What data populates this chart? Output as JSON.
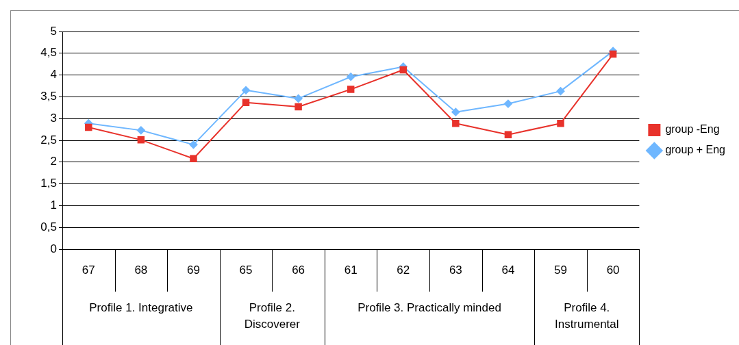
{
  "chart_data": {
    "type": "line",
    "categories": [
      "67",
      "68",
      "69",
      "65",
      "66",
      "61",
      "62",
      "63",
      "64",
      "59",
      "60"
    ],
    "series": [
      {
        "name": "group + Eng",
        "color": "#6fb7ff",
        "marker": "diamond",
        "values": [
          2.89,
          2.73,
          2.4,
          3.65,
          3.46,
          3.96,
          4.19,
          3.15,
          3.34,
          3.63,
          4.55
        ]
      },
      {
        "name": "group -Eng",
        "color": "#e8322b",
        "marker": "square",
        "values": [
          2.8,
          2.51,
          2.08,
          3.37,
          3.27,
          3.67,
          4.12,
          2.89,
          2.63,
          2.89,
          4.48
        ]
      }
    ],
    "ylim": [
      0,
      5
    ],
    "yticks": [
      0,
      {
        "value": 0.5,
        "label": "0,5"
      },
      1,
      {
        "value": 1.5,
        "label": "1,5"
      },
      2,
      {
        "value": 2.5,
        "label": "2,5"
      },
      3,
      {
        "value": 3.5,
        "label": "3,5"
      },
      4,
      {
        "value": 4.5,
        "label": "4,5"
      },
      5
    ],
    "grid": "y",
    "legend": "right",
    "line_style": "solid",
    "annotations": [
      "Profile 1. Integrative",
      "Profile 2. Discoverer",
      "Profile 3. Practically minded",
      "Profile 4. Instrumental"
    ]
  }
}
